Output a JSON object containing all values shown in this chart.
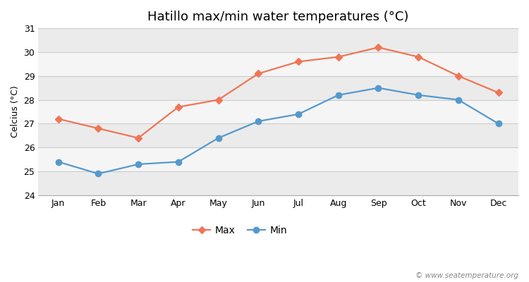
{
  "title": "Hatillo max/min water temperatures (°C)",
  "ylabel": "Celcius (°C)",
  "months": [
    "Jan",
    "Feb",
    "Mar",
    "Apr",
    "May",
    "Jun",
    "Jul",
    "Aug",
    "Sep",
    "Oct",
    "Nov",
    "Dec"
  ],
  "max_values": [
    27.2,
    26.8,
    26.4,
    27.7,
    28.0,
    29.1,
    29.6,
    29.8,
    30.2,
    29.8,
    29.0,
    28.3
  ],
  "min_values": [
    25.4,
    24.9,
    25.3,
    25.4,
    26.4,
    27.1,
    27.4,
    28.2,
    28.5,
    28.2,
    28.0,
    27.0
  ],
  "max_color": "#f07555",
  "min_color": "#5599cc",
  "ylim": [
    24,
    31
  ],
  "yticks": [
    24,
    25,
    26,
    27,
    28,
    29,
    30,
    31
  ],
  "band_colors": [
    "#ebebeb",
    "#f5f5f5"
  ],
  "figure_bg": "#ffffff",
  "grid_line_color": "#d8d8d8",
  "marker_max": "D",
  "marker_min": "o",
  "legend_labels": [
    "Max",
    "Min"
  ],
  "watermark": "© www.seatemperature.org",
  "title_fontsize": 13,
  "label_fontsize": 9,
  "tick_fontsize": 9,
  "watermark_fontsize": 7.5
}
